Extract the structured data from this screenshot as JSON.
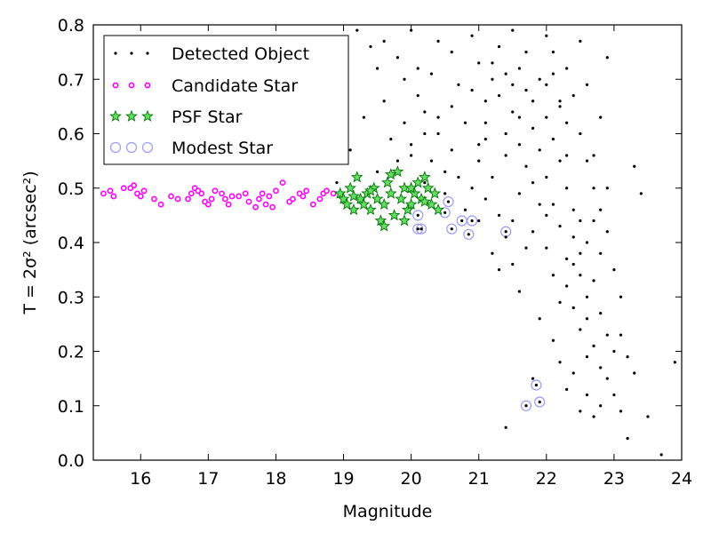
{
  "chart_data": {
    "type": "scatter",
    "xlabel": "Magnitude",
    "ylabel": "T = 2σ² (arcsec²)",
    "xlim": [
      15.3,
      24.0
    ],
    "ylim": [
      0.0,
      0.8
    ],
    "xticks": [
      "16",
      "17",
      "18",
      "19",
      "20",
      "21",
      "22",
      "23",
      "24"
    ],
    "yticks": [
      "0.0",
      "0.1",
      "0.2",
      "0.3",
      "0.4",
      "0.5",
      "0.6",
      "0.7",
      "0.8"
    ],
    "grid": false,
    "legend_position": "top-left",
    "series": [
      {
        "name": "Detected Object",
        "marker": "dot",
        "color": "#000000",
        "points": [
          [
            19.2,
            0.79
          ],
          [
            19.4,
            0.76
          ],
          [
            19.5,
            0.72
          ],
          [
            19.6,
            0.77
          ],
          [
            19.8,
            0.74
          ],
          [
            19.9,
            0.7
          ],
          [
            20.0,
            0.79
          ],
          [
            20.1,
            0.72
          ],
          [
            19.3,
            0.63
          ],
          [
            19.6,
            0.66
          ],
          [
            19.9,
            0.62
          ],
          [
            20.1,
            0.67
          ],
          [
            20.3,
            0.71
          ],
          [
            20.4,
            0.77
          ],
          [
            20.2,
            0.6
          ],
          [
            20.0,
            0.56
          ],
          [
            19.7,
            0.59
          ],
          [
            20.4,
            0.63
          ],
          [
            20.6,
            0.75
          ],
          [
            20.7,
            0.69
          ],
          [
            20.8,
            0.62
          ],
          [
            20.6,
            0.57
          ],
          [
            20.5,
            0.53
          ],
          [
            20.3,
            0.55
          ],
          [
            20.9,
            0.78
          ],
          [
            21.0,
            0.73
          ],
          [
            21.1,
            0.66
          ],
          [
            21.2,
            0.7
          ],
          [
            21.3,
            0.76
          ],
          [
            21.1,
            0.59
          ],
          [
            21.0,
            0.55
          ],
          [
            21.2,
            0.52
          ],
          [
            20.9,
            0.5
          ],
          [
            20.8,
            0.46
          ],
          [
            21.0,
            0.44
          ],
          [
            21.1,
            0.48
          ],
          [
            21.3,
            0.45
          ],
          [
            21.4,
            0.41
          ],
          [
            21.2,
            0.38
          ],
          [
            21.3,
            0.35
          ],
          [
            21.5,
            0.79
          ],
          [
            21.6,
            0.72
          ],
          [
            21.7,
            0.68
          ],
          [
            21.5,
            0.64
          ],
          [
            21.8,
            0.61
          ],
          [
            21.6,
            0.58
          ],
          [
            21.4,
            0.56
          ],
          [
            21.7,
            0.54
          ],
          [
            21.9,
            0.57
          ],
          [
            21.8,
            0.51
          ],
          [
            21.9,
            0.47
          ],
          [
            21.6,
            0.49
          ],
          [
            21.5,
            0.44
          ],
          [
            21.8,
            0.42
          ],
          [
            22.0,
            0.45
          ],
          [
            21.7,
            0.39
          ],
          [
            22.0,
            0.78
          ],
          [
            22.1,
            0.71
          ],
          [
            22.2,
            0.66
          ],
          [
            22.0,
            0.63
          ],
          [
            22.1,
            0.59
          ],
          [
            22.3,
            0.62
          ],
          [
            22.2,
            0.55
          ],
          [
            22.0,
            0.52
          ],
          [
            22.3,
            0.5
          ],
          [
            22.1,
            0.47
          ],
          [
            22.4,
            0.46
          ],
          [
            22.2,
            0.43
          ],
          [
            22.4,
            0.41
          ],
          [
            22.0,
            0.39
          ],
          [
            22.3,
            0.37
          ],
          [
            22.5,
            0.38
          ],
          [
            22.1,
            0.34
          ],
          [
            22.3,
            0.32
          ],
          [
            22.5,
            0.34
          ],
          [
            22.6,
            0.3
          ],
          [
            22.4,
            0.28
          ],
          [
            22.6,
            0.26
          ],
          [
            22.2,
            0.29
          ],
          [
            22.7,
            0.33
          ],
          [
            22.8,
            0.27
          ],
          [
            22.5,
            0.24
          ],
          [
            22.7,
            0.21
          ],
          [
            22.9,
            0.23
          ],
          [
            22.6,
            0.19
          ],
          [
            22.8,
            0.17
          ],
          [
            23.0,
            0.2
          ],
          [
            22.9,
            0.15
          ],
          [
            22.4,
            0.16
          ],
          [
            22.6,
            0.12
          ],
          [
            22.8,
            0.1
          ],
          [
            22.5,
            0.09
          ],
          [
            23.0,
            0.12
          ],
          [
            22.3,
            0.13
          ],
          [
            23.1,
            0.09
          ],
          [
            22.7,
            0.08
          ],
          [
            23.2,
            0.19
          ],
          [
            23.1,
            0.23
          ],
          [
            23.3,
            0.16
          ],
          [
            23.0,
            0.35
          ],
          [
            22.9,
            0.42
          ],
          [
            23.1,
            0.3
          ],
          [
            23.3,
            0.54
          ],
          [
            23.4,
            0.49
          ],
          [
            22.7,
            0.56
          ],
          [
            22.8,
            0.63
          ],
          [
            22.6,
            0.69
          ],
          [
            22.9,
            0.74
          ],
          [
            22.5,
            0.77
          ],
          [
            23.2,
            0.04
          ],
          [
            23.5,
            0.08
          ],
          [
            23.7,
            0.01
          ],
          [
            23.9,
            0.18
          ],
          [
            21.4,
            0.06
          ],
          [
            21.8,
            0.15
          ],
          [
            22.1,
            0.22
          ],
          [
            21.9,
            0.26
          ],
          [
            22.2,
            0.18
          ],
          [
            21.6,
            0.31
          ],
          [
            21.5,
            0.36
          ],
          [
            19.0,
            0.69
          ],
          [
            19.1,
            0.57
          ],
          [
            18.9,
            0.51
          ],
          [
            19.5,
            0.53
          ],
          [
            19.8,
            0.55
          ],
          [
            20.2,
            0.51
          ],
          [
            20.5,
            0.49
          ],
          [
            20.7,
            0.52
          ],
          [
            21.0,
            0.58
          ],
          [
            21.1,
            0.62
          ],
          [
            21.4,
            0.6
          ],
          [
            21.6,
            0.63
          ],
          [
            21.3,
            0.67
          ],
          [
            21.4,
            0.71
          ],
          [
            21.7,
            0.75
          ],
          [
            21.9,
            0.7
          ],
          [
            22.1,
            0.75
          ],
          [
            22.3,
            0.72
          ],
          [
            22.4,
            0.67
          ],
          [
            22.5,
            0.6
          ],
          [
            22.6,
            0.55
          ],
          [
            22.7,
            0.5
          ],
          [
            22.8,
            0.46
          ],
          [
            22.5,
            0.44
          ],
          [
            22.6,
            0.4
          ],
          [
            22.4,
            0.36
          ],
          [
            22.8,
            0.38
          ],
          [
            22.7,
            0.44
          ],
          [
            22.9,
            0.5
          ],
          [
            22.3,
            0.56
          ],
          [
            22.2,
            0.65
          ],
          [
            22.0,
            0.69
          ],
          [
            21.8,
            0.66
          ],
          [
            21.5,
            0.69
          ],
          [
            21.2,
            0.73
          ],
          [
            20.9,
            0.68
          ],
          [
            20.6,
            0.65
          ],
          [
            20.4,
            0.6
          ],
          [
            20.2,
            0.64
          ],
          [
            20.0,
            0.58
          ]
        ]
      },
      {
        "name": "Candidate Star",
        "marker": "small-circle",
        "color": "#ff00ff",
        "points": [
          [
            15.45,
            0.49
          ],
          [
            15.55,
            0.495
          ],
          [
            15.6,
            0.485
          ],
          [
            15.75,
            0.5
          ],
          [
            15.9,
            0.505
          ],
          [
            15.95,
            0.49
          ],
          [
            16.0,
            0.485
          ],
          [
            16.05,
            0.495
          ],
          [
            16.2,
            0.48
          ],
          [
            16.3,
            0.47
          ],
          [
            16.45,
            0.485
          ],
          [
            16.7,
            0.48
          ],
          [
            16.75,
            0.49
          ],
          [
            16.8,
            0.5
          ],
          [
            16.85,
            0.495
          ],
          [
            16.9,
            0.49
          ],
          [
            16.95,
            0.475
          ],
          [
            17.0,
            0.47
          ],
          [
            17.05,
            0.48
          ],
          [
            17.1,
            0.495
          ],
          [
            17.2,
            0.49
          ],
          [
            17.25,
            0.48
          ],
          [
            17.3,
            0.47
          ],
          [
            17.45,
            0.485
          ],
          [
            17.55,
            0.49
          ],
          [
            17.6,
            0.475
          ],
          [
            17.7,
            0.465
          ],
          [
            17.75,
            0.48
          ],
          [
            17.8,
            0.49
          ],
          [
            17.85,
            0.47
          ],
          [
            17.9,
            0.485
          ],
          [
            17.95,
            0.465
          ],
          [
            18.0,
            0.495
          ],
          [
            18.1,
            0.51
          ],
          [
            18.2,
            0.475
          ],
          [
            18.25,
            0.48
          ],
          [
            18.35,
            0.49
          ],
          [
            18.4,
            0.485
          ],
          [
            18.45,
            0.495
          ],
          [
            18.55,
            0.47
          ],
          [
            18.65,
            0.48
          ],
          [
            18.7,
            0.49
          ],
          [
            18.75,
            0.495
          ],
          [
            18.85,
            0.49
          ],
          [
            17.35,
            0.485
          ],
          [
            16.55,
            0.48
          ],
          [
            15.85,
            0.5
          ]
        ]
      },
      {
        "name": "PSF Star",
        "marker": "star",
        "color": "#00aa00",
        "points": [
          [
            18.95,
            0.49
          ],
          [
            19.0,
            0.48
          ],
          [
            19.05,
            0.47
          ],
          [
            19.1,
            0.5
          ],
          [
            19.15,
            0.46
          ],
          [
            19.2,
            0.52
          ],
          [
            19.25,
            0.48
          ],
          [
            19.3,
            0.47
          ],
          [
            19.35,
            0.49
          ],
          [
            19.4,
            0.46
          ],
          [
            19.45,
            0.5
          ],
          [
            19.5,
            0.48
          ],
          [
            19.55,
            0.44
          ],
          [
            19.6,
            0.47
          ],
          [
            19.65,
            0.51
          ],
          [
            19.7,
            0.49
          ],
          [
            19.75,
            0.45
          ],
          [
            19.8,
            0.53
          ],
          [
            19.85,
            0.48
          ],
          [
            19.9,
            0.5
          ],
          [
            19.95,
            0.46
          ],
          [
            20.0,
            0.47
          ],
          [
            20.05,
            0.49
          ],
          [
            20.1,
            0.51
          ],
          [
            20.15,
            0.48
          ],
          [
            20.2,
            0.52
          ],
          [
            20.25,
            0.5
          ],
          [
            20.3,
            0.47
          ],
          [
            20.35,
            0.49
          ],
          [
            19.6,
            0.43
          ],
          [
            19.9,
            0.44
          ],
          [
            20.0,
            0.5
          ],
          [
            19.4,
            0.495
          ],
          [
            19.15,
            0.485
          ],
          [
            20.4,
            0.46
          ],
          [
            19.7,
            0.525
          ],
          [
            20.2,
            0.475
          ]
        ]
      },
      {
        "name": "Modest Star",
        "marker": "open-circle",
        "color": "#9999ff",
        "points": [
          [
            20.1,
            0.45
          ],
          [
            20.15,
            0.425
          ],
          [
            20.1,
            0.425
          ],
          [
            20.5,
            0.455
          ],
          [
            20.55,
            0.475
          ],
          [
            20.6,
            0.425
          ],
          [
            20.85,
            0.415
          ],
          [
            20.9,
            0.44
          ],
          [
            21.4,
            0.42
          ],
          [
            21.7,
            0.1
          ],
          [
            21.85,
            0.138
          ],
          [
            21.9,
            0.107
          ],
          [
            20.75,
            0.44
          ]
        ]
      }
    ]
  }
}
